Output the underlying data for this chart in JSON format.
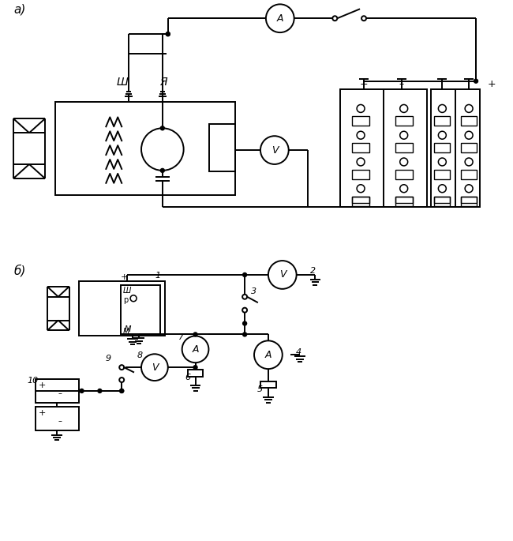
{
  "title_a": "а)",
  "title_b": "б)",
  "label_sh": "Ш",
  "label_ya": "Я",
  "label_plus": "+",
  "label_minus": "–",
  "label_A": "A",
  "label_V": "V",
  "bg_color": "#ffffff",
  "line_color": "#000000",
  "line_width": 1.4
}
